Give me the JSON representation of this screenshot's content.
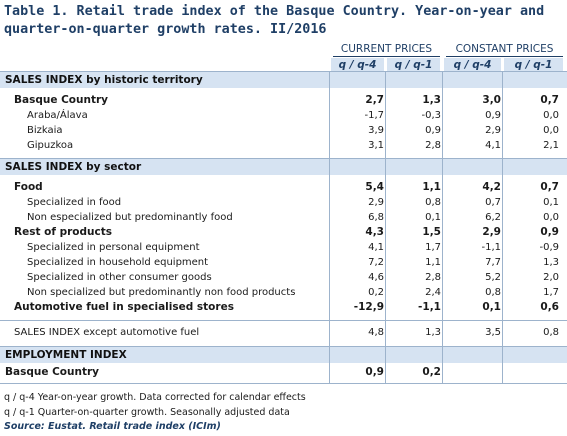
{
  "title": "Table 1. Retail trade index of the Basque Country. Year-on-year and quarter-on-quarter growth rates. II/2016",
  "headers": {
    "current_prices": "CURRENT PRICES",
    "constant_prices": "CONSTANT PRICES",
    "qq4": "q / q-4",
    "qq1": "q / q-1"
  },
  "sections": [
    {
      "label": "SALES INDEX by historic territory",
      "rows": [
        {
          "label": "Basque Country",
          "bold": true,
          "indent": 1,
          "values": [
            "2,7",
            "1,3",
            "3,0",
            "0,7"
          ]
        },
        {
          "label": "Araba/Álava",
          "bold": false,
          "indent": 2,
          "values": [
            "-1,7",
            "-0,3",
            "0,9",
            "0,0"
          ]
        },
        {
          "label": "Bizkaia",
          "bold": false,
          "indent": 2,
          "values": [
            "3,9",
            "0,9",
            "2,9",
            "0,0"
          ]
        },
        {
          "label": "Gipuzkoa",
          "bold": false,
          "indent": 2,
          "values": [
            "3,1",
            "2,8",
            "4,1",
            "2,1"
          ]
        }
      ]
    },
    {
      "label": "SALES INDEX by sector",
      "rows": [
        {
          "label": "Food",
          "bold": true,
          "indent": 1,
          "values": [
            "5,4",
            "1,1",
            "4,2",
            "0,7"
          ]
        },
        {
          "label": "Specialized in food",
          "bold": false,
          "indent": 2,
          "values": [
            "2,9",
            "0,8",
            "0,7",
            "0,1"
          ]
        },
        {
          "label": "Non especialized but predominantly food",
          "bold": false,
          "indent": 2,
          "values": [
            "6,8",
            "0,1",
            "6,2",
            "0,0"
          ]
        },
        {
          "label": "Rest of products",
          "bold": true,
          "indent": 1,
          "values": [
            "4,3",
            "1,5",
            "2,9",
            "0,9"
          ]
        },
        {
          "label": "Specialized in personal equipment",
          "bold": false,
          "indent": 2,
          "values": [
            "4,1",
            "1,7",
            "-1,1",
            "-0,9"
          ]
        },
        {
          "label": "Specialized in household equipment",
          "bold": false,
          "indent": 2,
          "values": [
            "7,2",
            "1,1",
            "7,7",
            "1,3"
          ]
        },
        {
          "label": "Specialized in other consumer goods",
          "bold": false,
          "indent": 2,
          "values": [
            "4,6",
            "2,8",
            "5,2",
            "2,0"
          ]
        },
        {
          "label": "Non specialized but predominantly non food products",
          "bold": false,
          "indent": 2,
          "values": [
            "0,2",
            "2,4",
            "0,8",
            "1,7"
          ]
        },
        {
          "label": "Automotive fuel in specialised stores",
          "bold": true,
          "indent": 1,
          "values": [
            "-12,9",
            "-1,1",
            "0,1",
            "0,6"
          ]
        }
      ]
    }
  ],
  "except_row": {
    "label": "SALES INDEX except automotive fuel",
    "values": [
      "4,8",
      "1,3",
      "3,5",
      "0,8"
    ]
  },
  "employment": {
    "label": "EMPLOYMENT INDEX",
    "row": {
      "label": "Basque Country",
      "values": [
        "0,9",
        "0,2"
      ]
    }
  },
  "footnotes": [
    "q / q-4 Year-on-year growth. Data corrected for calendar effects",
    "q / q-1 Quarter-on-quarter growth. Seasonally adjusted data"
  ],
  "source": "Source: Eustat. Retail trade index (ICIm)"
}
